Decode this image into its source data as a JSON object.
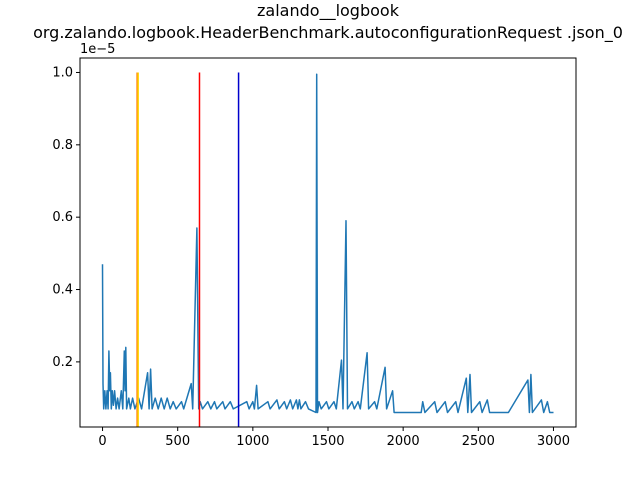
{
  "chart_data": {
    "type": "line",
    "title": "zalando__logbook",
    "subtitle": "org.zalando.logbook.HeaderBenchmark.autoconfigurationRequest .json_0",
    "y_offset_label": "1e−5",
    "xlim": [
      -150,
      3150
    ],
    "ylim": [
      0.02,
      1.04
    ],
    "x_ticks": [
      0,
      500,
      1000,
      1500,
      2000,
      2500,
      3000
    ],
    "x_tick_labels": [
      "0",
      "500",
      "1000",
      "1500",
      "2000",
      "2500",
      "3000"
    ],
    "y_ticks": [
      0.2,
      0.4,
      0.6,
      0.8,
      1.0
    ],
    "y_tick_labels": [
      "0.2",
      "0.4",
      "0.6",
      "0.8",
      "1.0"
    ],
    "grid": false,
    "colors": {
      "series": "#1f77b4"
    },
    "vertical_lines": [
      {
        "x": 230,
        "color": "#ff7f0e"
      },
      {
        "x": 237,
        "color": "#ffd700"
      },
      {
        "x": 645,
        "color": "#ff0000"
      },
      {
        "x": 905,
        "color": "#0000cc"
      }
    ],
    "series": [
      {
        "points": [
          [
            0,
            0.47
          ],
          [
            3,
            0.14
          ],
          [
            8,
            0.07
          ],
          [
            15,
            0.12
          ],
          [
            22,
            0.07
          ],
          [
            30,
            0.12
          ],
          [
            37,
            0.07
          ],
          [
            42,
            0.23
          ],
          [
            48,
            0.12
          ],
          [
            52,
            0.17
          ],
          [
            58,
            0.07
          ],
          [
            65,
            0.12
          ],
          [
            72,
            0.08
          ],
          [
            80,
            0.12
          ],
          [
            90,
            0.07
          ],
          [
            100,
            0.1
          ],
          [
            110,
            0.07
          ],
          [
            125,
            0.12
          ],
          [
            135,
            0.07
          ],
          [
            145,
            0.23
          ],
          [
            150,
            0.12
          ],
          [
            155,
            0.24
          ],
          [
            160,
            0.07
          ],
          [
            175,
            0.1
          ],
          [
            185,
            0.07
          ],
          [
            200,
            0.1
          ],
          [
            215,
            0.07
          ],
          [
            240,
            0.1
          ],
          [
            260,
            0.07
          ],
          [
            300,
            0.17
          ],
          [
            310,
            0.07
          ],
          [
            320,
            0.18
          ],
          [
            330,
            0.07
          ],
          [
            350,
            0.1
          ],
          [
            370,
            0.07
          ],
          [
            390,
            0.1
          ],
          [
            410,
            0.07
          ],
          [
            430,
            0.1
          ],
          [
            450,
            0.07
          ],
          [
            470,
            0.09
          ],
          [
            490,
            0.07
          ],
          [
            525,
            0.09
          ],
          [
            540,
            0.07
          ],
          [
            590,
            0.14
          ],
          [
            600,
            0.07
          ],
          [
            628,
            0.57
          ],
          [
            640,
            0.07
          ],
          [
            650,
            0.09
          ],
          [
            665,
            0.07
          ],
          [
            700,
            0.09
          ],
          [
            720,
            0.07
          ],
          [
            745,
            0.09
          ],
          [
            760,
            0.07
          ],
          [
            800,
            0.09
          ],
          [
            815,
            0.07
          ],
          [
            850,
            0.09
          ],
          [
            870,
            0.07
          ],
          [
            960,
            0.09
          ],
          [
            975,
            0.07
          ],
          [
            1000,
            0.09
          ],
          [
            1010,
            0.07
          ],
          [
            1025,
            0.135
          ],
          [
            1035,
            0.07
          ],
          [
            1100,
            0.09
          ],
          [
            1115,
            0.07
          ],
          [
            1160,
            0.095
          ],
          [
            1175,
            0.07
          ],
          [
            1210,
            0.09
          ],
          [
            1225,
            0.07
          ],
          [
            1250,
            0.095
          ],
          [
            1265,
            0.07
          ],
          [
            1290,
            0.095
          ],
          [
            1300,
            0.07
          ],
          [
            1310,
            0.095
          ],
          [
            1320,
            0.07
          ],
          [
            1350,
            0.09
          ],
          [
            1370,
            0.07
          ],
          [
            1420,
            0.06
          ],
          [
            1425,
            0.995
          ],
          [
            1430,
            0.06
          ],
          [
            1440,
            0.09
          ],
          [
            1455,
            0.07
          ],
          [
            1490,
            0.09
          ],
          [
            1505,
            0.07
          ],
          [
            1540,
            0.09
          ],
          [
            1555,
            0.07
          ],
          [
            1590,
            0.205
          ],
          [
            1600,
            0.07
          ],
          [
            1620,
            0.59
          ],
          [
            1630,
            0.07
          ],
          [
            1660,
            0.09
          ],
          [
            1675,
            0.07
          ],
          [
            1700,
            0.09
          ],
          [
            1715,
            0.07
          ],
          [
            1760,
            0.225
          ],
          [
            1770,
            0.07
          ],
          [
            1810,
            0.09
          ],
          [
            1825,
            0.07
          ],
          [
            1880,
            0.185
          ],
          [
            1890,
            0.07
          ],
          [
            1930,
            0.12
          ],
          [
            1940,
            0.06
          ],
          [
            2000,
            0.06
          ],
          [
            2120,
            0.06
          ],
          [
            2130,
            0.09
          ],
          [
            2145,
            0.06
          ],
          [
            2210,
            0.09
          ],
          [
            2225,
            0.06
          ],
          [
            2280,
            0.09
          ],
          [
            2295,
            0.06
          ],
          [
            2350,
            0.09
          ],
          [
            2365,
            0.06
          ],
          [
            2420,
            0.155
          ],
          [
            2430,
            0.06
          ],
          [
            2445,
            0.165
          ],
          [
            2455,
            0.06
          ],
          [
            2510,
            0.09
          ],
          [
            2525,
            0.06
          ],
          [
            2560,
            0.095
          ],
          [
            2575,
            0.06
          ],
          [
            2700,
            0.06
          ],
          [
            2830,
            0.15
          ],
          [
            2840,
            0.06
          ],
          [
            2850,
            0.165
          ],
          [
            2860,
            0.06
          ],
          [
            2920,
            0.095
          ],
          [
            2935,
            0.06
          ],
          [
            2960,
            0.09
          ],
          [
            2975,
            0.06
          ],
          [
            3000,
            0.06
          ]
        ]
      }
    ]
  }
}
